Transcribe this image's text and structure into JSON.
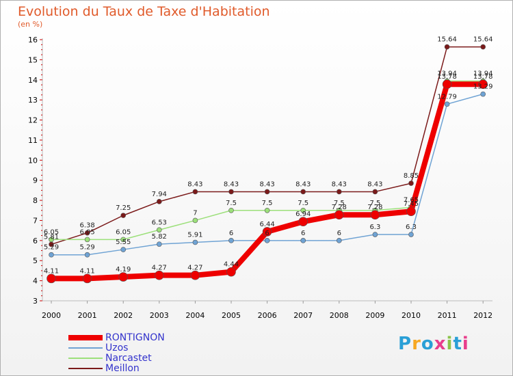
{
  "logo": {
    "text": "Proxiti",
    "colors": [
      "#2a9fd6",
      "#f7a823",
      "#2a9fd6",
      "#e83e8c",
      "#8bc34a",
      "#2a9fd6",
      "#e83e8c"
    ]
  },
  "chart_data": {
    "type": "line",
    "title": "Evolution du Taux de Taxe d'Habitation",
    "subtitle": "(en %)",
    "xlabel": "",
    "ylabel": "",
    "x": [
      "2000",
      "2001",
      "2002",
      "2003",
      "2004",
      "2005",
      "2006",
      "2007",
      "2008",
      "2009",
      "2010",
      "2011",
      "2012"
    ],
    "y_ticks": [
      3,
      4,
      5,
      6,
      7,
      8,
      9,
      10,
      11,
      12,
      13,
      14,
      15,
      16
    ],
    "ylim": [
      3,
      16
    ],
    "grid": false,
    "legend_position": "bottom-left",
    "series": [
      {
        "name": "Meillon",
        "color": "#7b1a1a",
        "line_width": 1.5,
        "marker": 3.5,
        "values": [
          5.81,
          6.38,
          7.25,
          7.94,
          8.43,
          8.43,
          8.43,
          8.43,
          8.43,
          8.43,
          8.85,
          15.64,
          15.64
        ],
        "labels": [
          "5.81",
          "6.38",
          "7.25",
          "7.94",
          "8.43",
          "8.43",
          "8.43",
          "8.43",
          "8.43",
          "8.43",
          "8.85",
          "15.64",
          "15.64"
        ]
      },
      {
        "name": "Narcastet",
        "color": "#9ce07a",
        "line_width": 1.5,
        "marker": 3.5,
        "values": [
          6.05,
          6.05,
          6.05,
          6.53,
          7,
          7.5,
          7.5,
          7.5,
          7.5,
          7.5,
          7.65,
          13.94,
          13.94
        ],
        "labels": [
          "6.05",
          "6.05",
          "6.05",
          "6.53",
          "7",
          "7.5",
          "7.5",
          "7.5",
          "7.5",
          "7.5",
          "7.65",
          "13.94",
          "13.94"
        ]
      },
      {
        "name": "Uzos",
        "color": "#6fa3d4",
        "line_width": 1.5,
        "marker": 3.5,
        "values": [
          5.29,
          5.29,
          5.55,
          5.82,
          5.91,
          6,
          6,
          6,
          6,
          6.3,
          6.3,
          12.79,
          13.29
        ],
        "labels": [
          "5.29",
          "5.29",
          "5.55",
          "5.82",
          "5.91",
          "6",
          "6",
          "6",
          "6",
          "6.3",
          "6.3",
          "12.79",
          "13.29"
        ]
      },
      {
        "name": "RONTIGNON",
        "color": "#ee0000",
        "line_width": 8,
        "marker": 6.5,
        "values": [
          4.11,
          4.11,
          4.19,
          4.27,
          4.27,
          4.44,
          6.44,
          6.94,
          7.28,
          7.28,
          7.45,
          13.78,
          13.78
        ],
        "labels": [
          "4.11",
          "4.11",
          "4.19",
          "4.27",
          "4.27",
          "4.44",
          "6.44",
          "6.94",
          "7.28",
          "7.28",
          "7.45",
          "13.78",
          "13.78"
        ]
      }
    ],
    "legend": [
      {
        "name": "RONTIGNON",
        "color": "#ee0000",
        "line_width": 8
      },
      {
        "name": "Uzos",
        "color": "#6fa3d4",
        "line_width": 2
      },
      {
        "name": "Narcastet",
        "color": "#9ce07a",
        "line_width": 2
      },
      {
        "name": "Meillon",
        "color": "#7b1a1a",
        "line_width": 2
      }
    ]
  }
}
